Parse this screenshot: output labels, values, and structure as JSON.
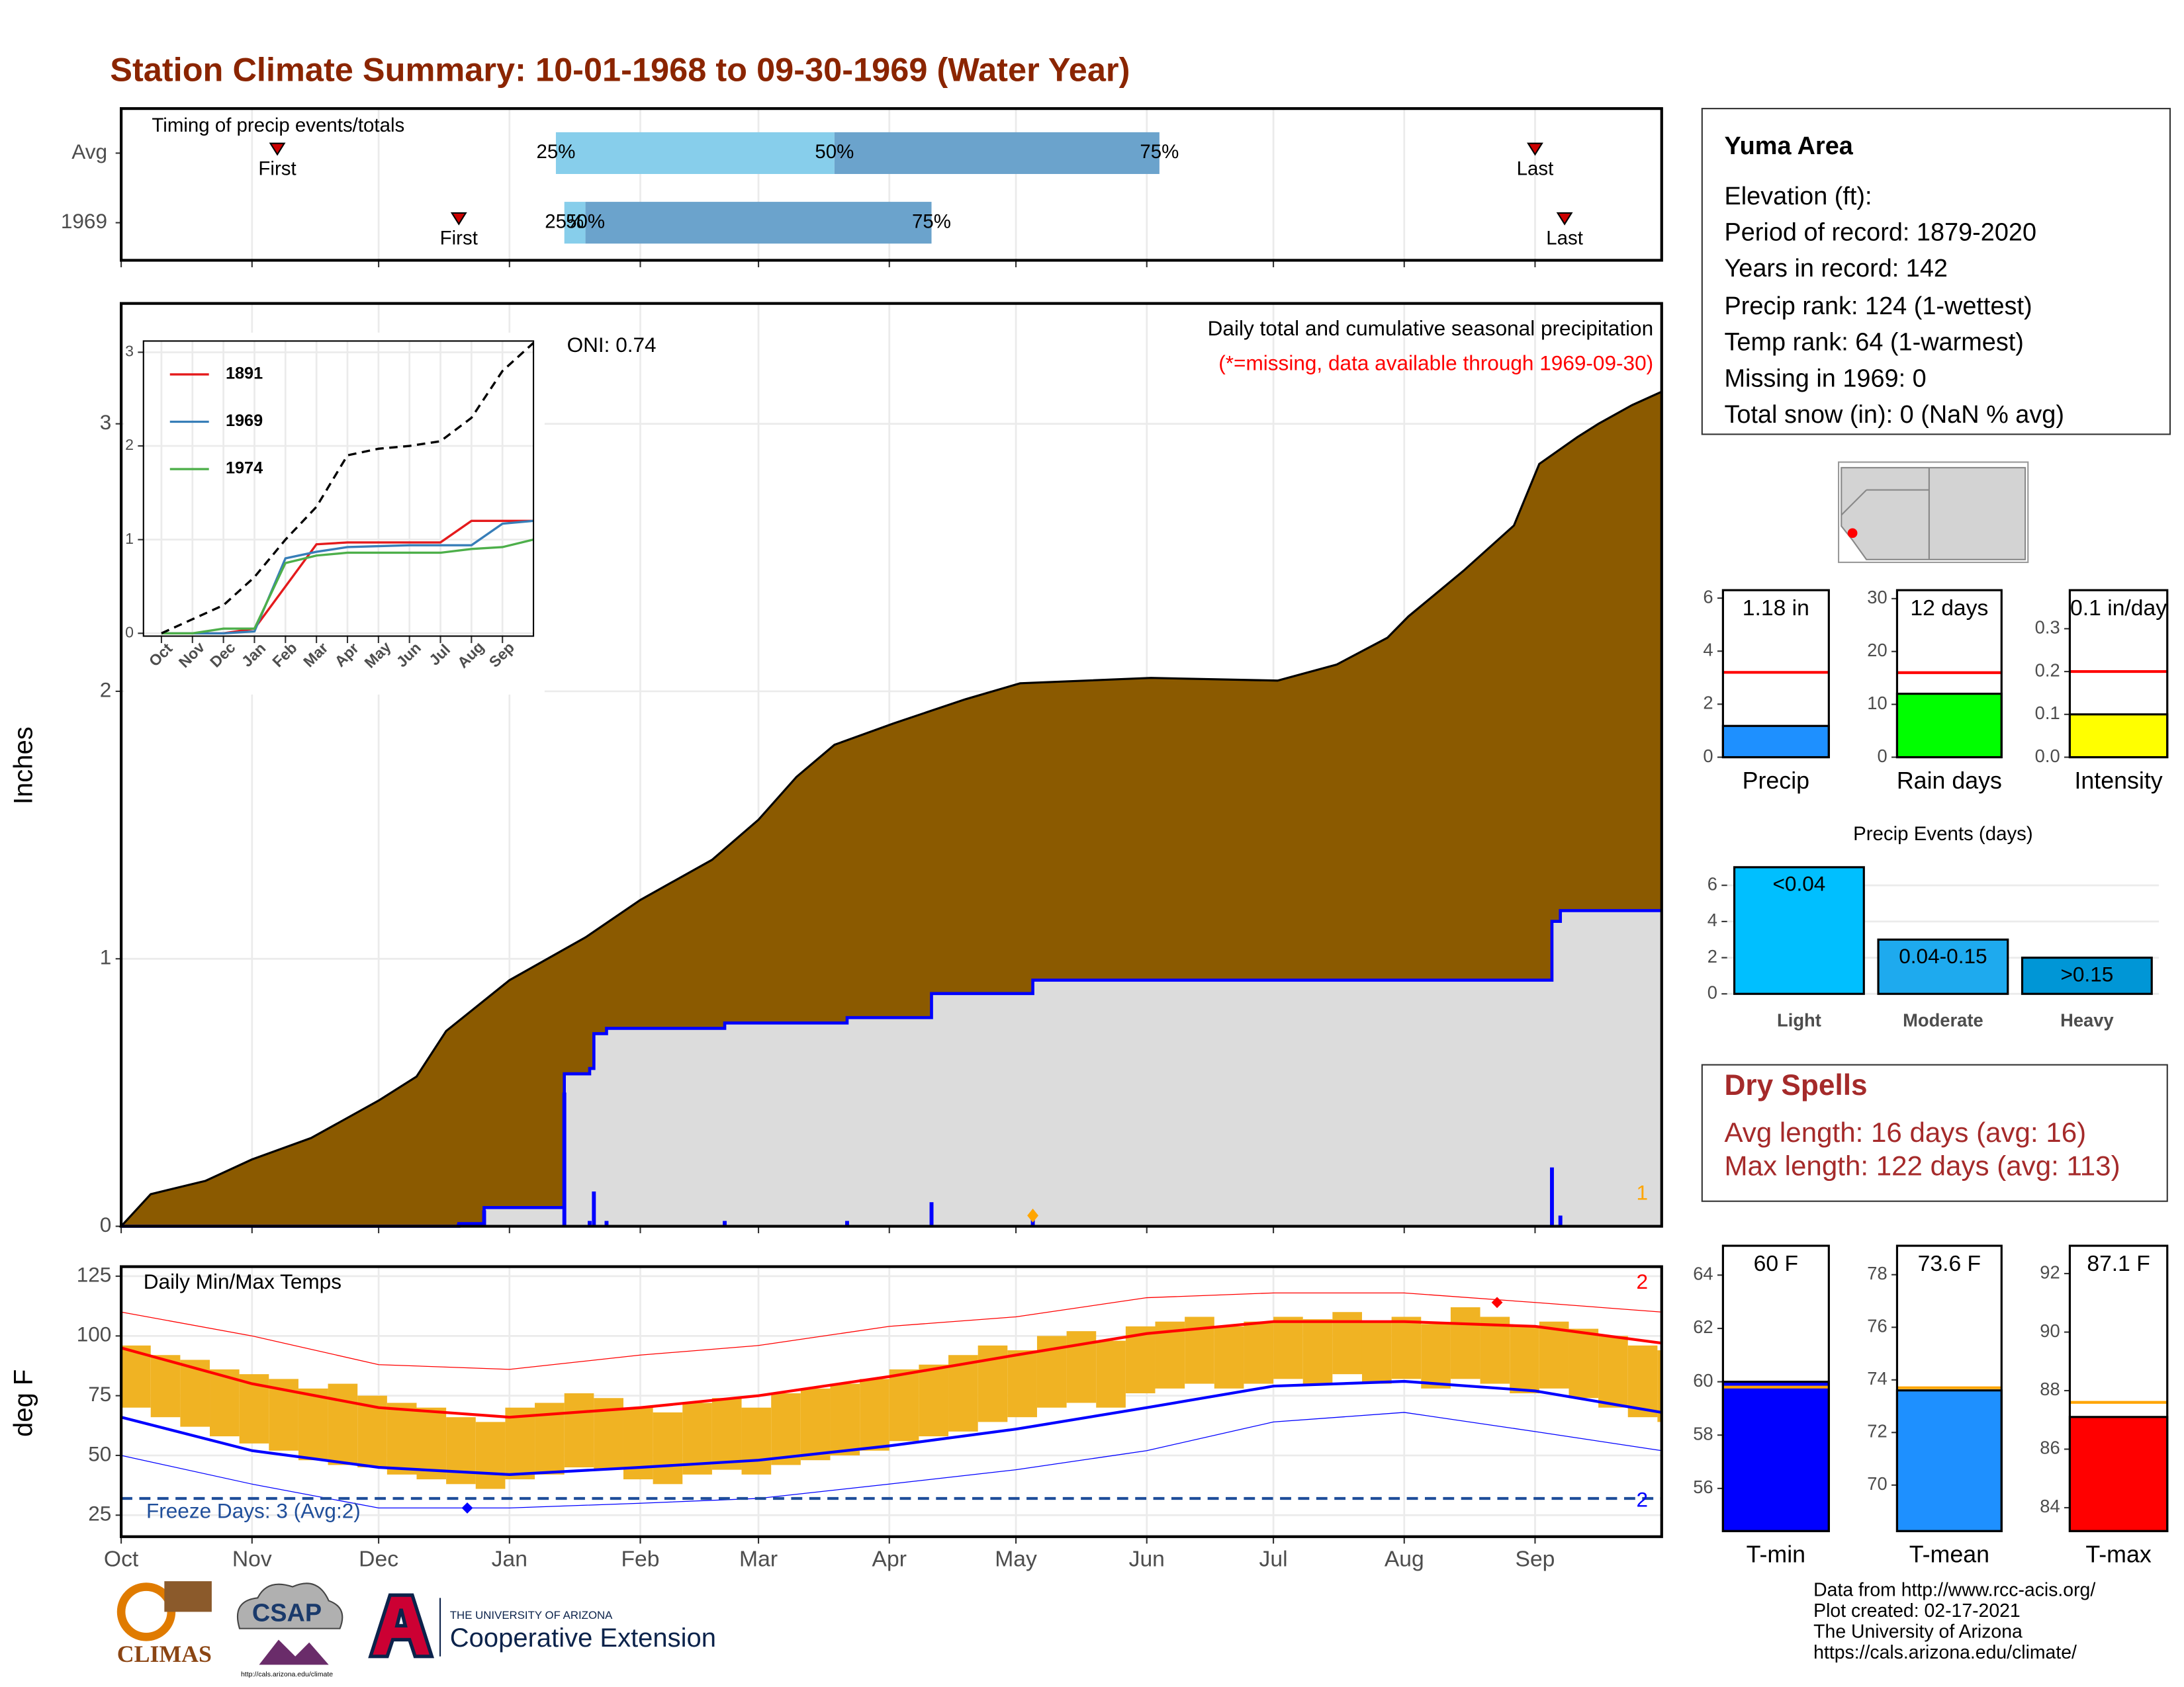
{
  "title": "Station Climate Summary: 10-01-1968 to 09-30-1969 (Water Year)",
  "info": {
    "heading": "Yuma Area",
    "lines": [
      "Elevation (ft):",
      "Period of record: 1879-2020",
      "Years in record: 142",
      "Precip rank: 124 (1-wettest)",
      "Temp rank: 64 (1-warmest)",
      "Missing in 1969: 0",
      "Total snow (in): 0 (NaN % avg)"
    ]
  },
  "dry_spells": {
    "title": "Dry Spells",
    "lines": [
      "Avg length: 16 days (avg: 16)",
      "Max length: 122 days (avg: 113)"
    ]
  },
  "footer": [
    "Data from http://www.rcc-acis.org/",
    "Plot created: 02-17-2021",
    "The University of Arizona",
    "https://cals.arizona.edu/climate/"
  ],
  "logos": {
    "climas": "CLIMAS",
    "csap": "CSAP",
    "csap_url": "http://cals.arizona.edu/climate",
    "ua": "THE UNIVERSITY OF ARIZONA",
    "extension": "Cooperative Extension"
  },
  "chart_data": [
    {
      "type": "range",
      "title": "Timing of precip events/totals",
      "categories": [
        "Avg",
        "1969"
      ],
      "xlim": [
        0,
        365
      ],
      "xticks": [
        0,
        31,
        61,
        92,
        123,
        151,
        182,
        212,
        243,
        273,
        304,
        335
      ],
      "grid": true,
      "quantiles": [
        {
          "name": "25%",
          "values": [
            103,
            105
          ]
        },
        {
          "name": "50%",
          "values": [
            169,
            110
          ]
        },
        {
          "name": "75%",
          "values": [
            246,
            192
          ]
        }
      ],
      "colors": [
        "#87ceeb",
        "#6ba3cc"
      ],
      "first": [
        37,
        80
      ],
      "last": [
        335,
        342
      ],
      "first_label": "First",
      "last_label": "Last",
      "marker_color": "#cc0000"
    },
    {
      "type": "area",
      "ylabel": "Inches",
      "subtitle": "Daily total and cumulative seasonal precipitation",
      "note": "(*=missing, data available through 1969-09-30)",
      "note_color": "#ff0000",
      "annotation": "ONI: 0.74",
      "corner_label": "1",
      "corner_color": "#ffa500",
      "xlim": [
        0,
        365
      ],
      "xticks": [
        0,
        31,
        61,
        92,
        123,
        151,
        182,
        212,
        243,
        273,
        304,
        335
      ],
      "ylim": [
        0,
        3.45
      ],
      "yticks": [
        0,
        1,
        2,
        3
      ],
      "grid": true,
      "series": [
        {
          "color": "#8b5a00",
          "x": [
            0,
            7,
            20,
            31,
            45,
            61,
            70,
            77,
            92,
            110,
            123,
            140,
            151,
            160,
            169,
            183,
            200,
            213,
            244,
            274,
            288,
            300,
            305,
            318,
            330,
            336,
            345,
            350,
            358,
            365
          ],
          "values": [
            0,
            0.12,
            0.17,
            0.25,
            0.33,
            0.47,
            0.56,
            0.73,
            0.92,
            1.08,
            1.22,
            1.37,
            1.52,
            1.68,
            1.8,
            1.88,
            1.97,
            2.03,
            2.05,
            2.04,
            2.1,
            2.2,
            2.28,
            2.45,
            2.62,
            2.85,
            2.95,
            3.0,
            3.07,
            3.12
          ]
        },
        {
          "color": "#0000ff",
          "fill": "#dcdcdc",
          "step": true,
          "x": [
            0,
            80,
            86,
            105,
            111,
            112,
            115,
            143,
            172,
            192,
            216,
            339,
            341,
            365
          ],
          "values": [
            0,
            0.01,
            0.07,
            0.57,
            0.59,
            0.72,
            0.74,
            0.76,
            0.78,
            0.87,
            0.92,
            1.14,
            1.18,
            1.18
          ]
        }
      ],
      "bars": {
        "color": "#0000ff",
        "x": [
          80,
          86,
          105,
          111,
          112,
          115,
          143,
          172,
          192,
          216,
          339,
          341
        ],
        "values": [
          0.01,
          0.06,
          0.5,
          0.02,
          0.13,
          0.02,
          0.02,
          0.02,
          0.09,
          0.05,
          0.22,
          0.04
        ]
      },
      "marker": {
        "x": 216,
        "value": 0.04,
        "color": "#ffa500"
      }
    },
    {
      "type": "line",
      "xlim": [
        -0.58,
        12
      ],
      "ylim": [
        -0.03,
        3.12
      ],
      "yticks": [
        0,
        1,
        2,
        3
      ],
      "grid": true,
      "xticks": [
        {
          "value": 0,
          "label": "Oct"
        },
        {
          "value": 1,
          "label": "Nov"
        },
        {
          "value": 2,
          "label": "Dec"
        },
        {
          "value": 3,
          "label": "Jan"
        },
        {
          "value": 4,
          "label": "Feb"
        },
        {
          "value": 5,
          "label": "Mar"
        },
        {
          "value": 6,
          "label": "Apr"
        },
        {
          "value": 7,
          "label": "May"
        },
        {
          "value": 8,
          "label": "Jun"
        },
        {
          "value": 9,
          "label": "Jul"
        },
        {
          "value": 10,
          "label": "Aug"
        },
        {
          "value": 11,
          "label": "Sep"
        }
      ],
      "x": [
        0,
        1,
        2,
        3,
        4,
        5,
        6,
        7,
        8,
        9,
        10,
        11,
        12
      ],
      "series": [
        {
          "name": "1891",
          "color": "#e41a1c",
          "values": [
            0,
            0,
            0,
            0.05,
            0.5,
            0.95,
            0.97,
            0.97,
            0.97,
            0.97,
            1.2,
            1.2,
            1.2
          ]
        },
        {
          "name": "1969",
          "color": "#377eb8",
          "values": [
            0,
            0,
            0,
            0.02,
            0.8,
            0.87,
            0.92,
            0.93,
            0.94,
            0.94,
            0.94,
            1.17,
            1.2
          ]
        },
        {
          "name": "1974",
          "color": "#4daf4a",
          "values": [
            0,
            0,
            0.05,
            0.05,
            0.75,
            0.83,
            0.86,
            0.86,
            0.86,
            0.86,
            0.9,
            0.92,
            1.0
          ]
        },
        {
          "color": "#000000",
          "dash": true,
          "values": [
            0,
            0.15,
            0.3,
            0.6,
            1.0,
            1.35,
            1.9,
            1.97,
            2.0,
            2.05,
            2.3,
            2.8,
            3.1
          ]
        }
      ]
    },
    {
      "type": "band",
      "title": "Daily Min/Max Temps",
      "ylabel": "deg F",
      "color": "#f0b323",
      "xlim": [
        0,
        365
      ],
      "xticks": [
        {
          "value": 0,
          "label": "Oct"
        },
        {
          "value": 31,
          "label": "Nov"
        },
        {
          "value": 61,
          "label": "Dec"
        },
        {
          "value": 92,
          "label": "Jan"
        },
        {
          "value": 123,
          "label": "Feb"
        },
        {
          "value": 151,
          "label": "Mar"
        },
        {
          "value": 182,
          "label": "Apr"
        },
        {
          "value": 212,
          "label": "May"
        },
        {
          "value": 243,
          "label": "Jun"
        },
        {
          "value": 273,
          "label": "Jul"
        },
        {
          "value": 304,
          "label": "Aug"
        },
        {
          "value": 335,
          "label": "Sep"
        }
      ],
      "ylim": [
        16,
        129
      ],
      "yticks": [
        25,
        50,
        75,
        100,
        125
      ],
      "grid": true,
      "x": [
        0,
        7,
        14,
        21,
        28,
        35,
        42,
        49,
        56,
        63,
        70,
        77,
        84,
        91,
        98,
        105,
        112,
        119,
        126,
        133,
        140,
        147,
        154,
        161,
        168,
        175,
        182,
        189,
        196,
        203,
        210,
        217,
        224,
        231,
        238,
        245,
        252,
        259,
        266,
        273,
        280,
        287,
        294,
        301,
        308,
        315,
        322,
        329,
        336,
        343,
        350,
        357,
        364
      ],
      "max": [
        96,
        92,
        90,
        86,
        84,
        82,
        78,
        80,
        75,
        72,
        70,
        66,
        64,
        70,
        72,
        76,
        74,
        70,
        68,
        72,
        74,
        70,
        76,
        78,
        80,
        82,
        86,
        88,
        92,
        96,
        94,
        100,
        102,
        98,
        104,
        106,
        108,
        104,
        106,
        108,
        107,
        110,
        106,
        108,
        105,
        112,
        108,
        104,
        106,
        103,
        100,
        96,
        94
      ],
      "min": [
        70,
        66,
        62,
        58,
        55,
        52,
        48,
        46,
        45,
        42,
        40,
        38,
        36,
        40,
        42,
        45,
        44,
        40,
        38,
        42,
        44,
        42,
        46,
        48,
        50,
        52,
        56,
        58,
        60,
        64,
        66,
        70,
        72,
        70,
        76,
        78,
        80,
        78,
        80,
        82,
        80,
        84,
        80,
        82,
        78,
        82,
        80,
        76,
        78,
        74,
        70,
        66,
        64
      ],
      "normal_x": [
        0,
        31,
        61,
        92,
        123,
        151,
        182,
        212,
        243,
        273,
        304,
        335,
        365
      ],
      "normal_max": [
        95,
        80,
        70,
        66,
        70,
        75,
        83,
        92,
        101,
        106,
        106,
        104,
        97
      ],
      "normal_min": [
        66,
        52,
        45,
        42,
        45,
        48,
        54,
        61,
        70,
        79,
        81,
        77,
        68
      ],
      "record_max": [
        110,
        100,
        88,
        86,
        92,
        96,
        104,
        108,
        116,
        118,
        118,
        114,
        110
      ],
      "record_min": [
        50,
        38,
        28,
        28,
        30,
        32,
        38,
        44,
        52,
        64,
        68,
        60,
        52
      ],
      "max_color": "#ff0000",
      "min_color": "#0000ff",
      "freeze": 32,
      "freeze_color": "#1f4e9a",
      "freeze_label": "Freeze Days: 3 (Avg:2)",
      "max_count": "2",
      "min_count": "2",
      "record_high": {
        "x": 326,
        "value": 114
      },
      "record_low": {
        "x": 82,
        "value": 28
      }
    },
    {
      "type": "bar",
      "categories": [
        "Precip"
      ],
      "values": [
        1.18
      ],
      "value_labels": [
        "1.18 in"
      ],
      "color": "#1e90ff",
      "avg": 3.2,
      "avg_color": "#ff0000",
      "ylim": [
        0,
        6.3
      ],
      "yticks": [
        0,
        2,
        4,
        6
      ]
    },
    {
      "type": "bar",
      "categories": [
        "Rain days"
      ],
      "values": [
        12
      ],
      "value_labels": [
        "12 days"
      ],
      "color": "#00ff00",
      "avg": 16,
      "avg_color": "#ff0000",
      "ylim": [
        0,
        31.6
      ],
      "yticks": [
        0,
        10,
        20,
        30
      ]
    },
    {
      "type": "bar",
      "categories": [
        "Intensity"
      ],
      "values": [
        0.1
      ],
      "value_labels": [
        "0.1 in/day"
      ],
      "color": "#ffff00",
      "avg": 0.2,
      "avg_color": "#ff0000",
      "ylim": [
        0,
        0.39
      ],
      "yticks": [
        {
          "value": 0,
          "label": "0.0"
        },
        0.1,
        0.2,
        0.3
      ]
    },
    {
      "type": "bar",
      "title": "Precip Events (days)",
      "categories": [
        "Light",
        "Moderate",
        "Heavy"
      ],
      "values": [
        7,
        3,
        2
      ],
      "thresholds": [
        "<0.04",
        "0.04-0.15",
        ">0.15"
      ],
      "colors": [
        "#00bfff",
        "#1eaaee",
        "#0096d6"
      ],
      "ylim": [
        -0.46,
        7.08
      ],
      "yticks": [
        0,
        2,
        4,
        6
      ],
      "grid": true
    },
    {
      "type": "bar",
      "categories": [
        "T-min"
      ],
      "values": [
        60
      ],
      "value_labels": [
        "60 F"
      ],
      "color": "#0000ff",
      "avg": 59.8,
      "avg_color": "#ffa500",
      "ylim": [
        54.4,
        65.1
      ],
      "yticks": [
        56,
        58,
        60,
        62,
        64
      ]
    },
    {
      "type": "bar",
      "categories": [
        "T-mean"
      ],
      "values": [
        73.6
      ],
      "value_labels": [
        "73.6 F"
      ],
      "color": "#1e90ff",
      "avg": 73.7,
      "avg_color": "#ffa500",
      "ylim": [
        68.25,
        79.1
      ],
      "yticks": [
        70,
        72,
        74,
        76,
        78
      ]
    },
    {
      "type": "bar",
      "categories": [
        "T-max"
      ],
      "values": [
        87.1
      ],
      "value_labels": [
        "87.1 F"
      ],
      "color": "#ff0000",
      "avg": 87.6,
      "avg_color": "#ffa500",
      "ylim": [
        83.2,
        92.95
      ],
      "yticks": [
        84,
        86,
        88,
        90,
        92
      ]
    }
  ]
}
